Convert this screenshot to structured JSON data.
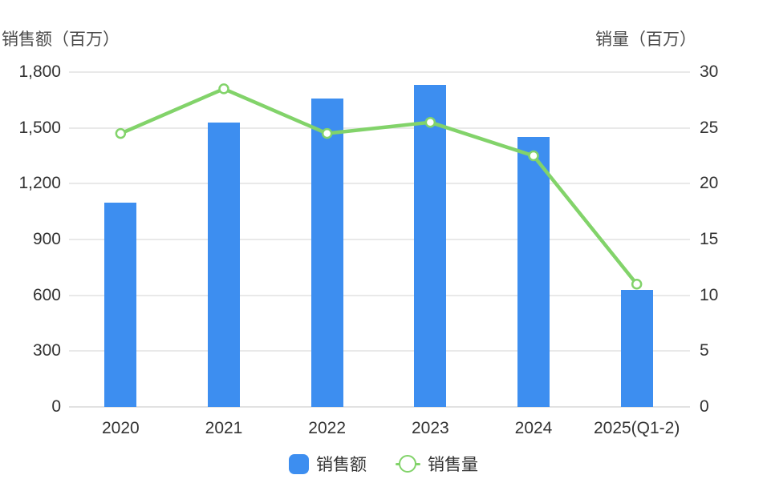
{
  "chart_data": {
    "type": "bar",
    "subtype": "bar-and-line-dual-axis",
    "left_axis_title": "销售额（百万）",
    "right_axis_title": "销量（百万）",
    "categories": [
      "2020",
      "2021",
      "2022",
      "2023",
      "2024",
      "2025(Q1-2)"
    ],
    "series": [
      {
        "name": "销售额",
        "type": "bar",
        "axis": "left",
        "color": "#3d8ef0",
        "values": [
          1100,
          1530,
          1660,
          1730,
          1450,
          630
        ]
      },
      {
        "name": "销售量",
        "type": "line",
        "axis": "right",
        "color": "#82d36a",
        "values": [
          24.5,
          28.5,
          24.5,
          25.5,
          22.5,
          11
        ]
      }
    ],
    "left_axis": {
      "min": 0,
      "max": 1800,
      "tick_step": 300,
      "tick_labels": [
        "0",
        "300",
        "600",
        "900",
        "1,200",
        "1,500",
        "1,800"
      ]
    },
    "right_axis": {
      "min": 0,
      "max": 30,
      "tick_step": 5,
      "tick_labels": [
        "0",
        "5",
        "10",
        "15",
        "20",
        "25",
        "30"
      ]
    },
    "grid": true,
    "legend_position": "bottom",
    "legend": [
      {
        "label": "销售额",
        "marker": "square",
        "color": "#3d8ef0"
      },
      {
        "label": "销售量",
        "marker": "circle-line",
        "color": "#82d36a"
      }
    ]
  }
}
